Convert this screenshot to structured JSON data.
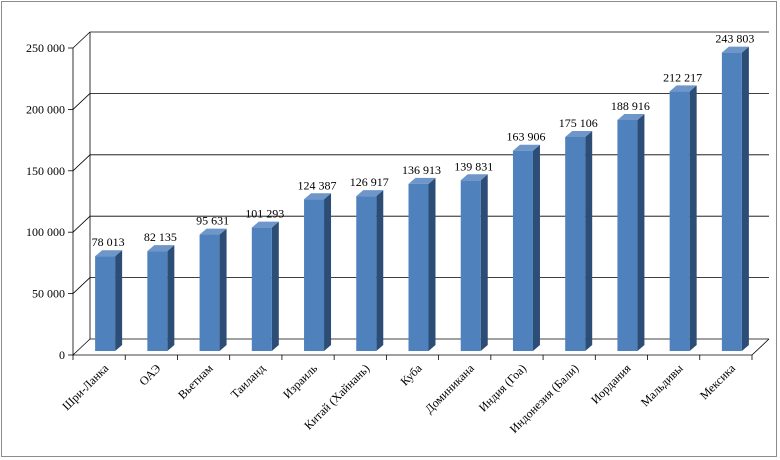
{
  "chart_data": {
    "type": "bar",
    "title": "",
    "xlabel": "",
    "ylabel": "",
    "ylim": [
      0,
      250000
    ],
    "y_ticks": [
      "0",
      "50 000",
      "100 000",
      "150 000",
      "200 000",
      "250 000"
    ],
    "grid": true,
    "legend": "none",
    "categories": [
      "Шри-Ланка",
      "ОАЭ",
      "Вьетнам",
      "Таиланд",
      "Израиль",
      "Китай (Хайнань)",
      "Куба",
      "Доминикана",
      "Индия (Гоа)",
      "Индонезия (Бали)",
      "Иордания",
      "Мальдивы",
      "Мексика"
    ],
    "values": [
      78013,
      82135,
      95631,
      101293,
      124387,
      126917,
      136913,
      139831,
      163906,
      175106,
      188916,
      212217,
      243803
    ],
    "data_labels": [
      "78 013",
      "82 135",
      "95 631",
      "101 293",
      "124 387",
      "126 917",
      "136 913",
      "139 831",
      "163 906",
      "175 106",
      "188 916",
      "212 217",
      "243 803"
    ],
    "colors": {
      "bar_front": "#4F81BD",
      "bar_side": "#2C4D75",
      "bar_top": "#6F96C9",
      "grid": "#000000"
    }
  }
}
